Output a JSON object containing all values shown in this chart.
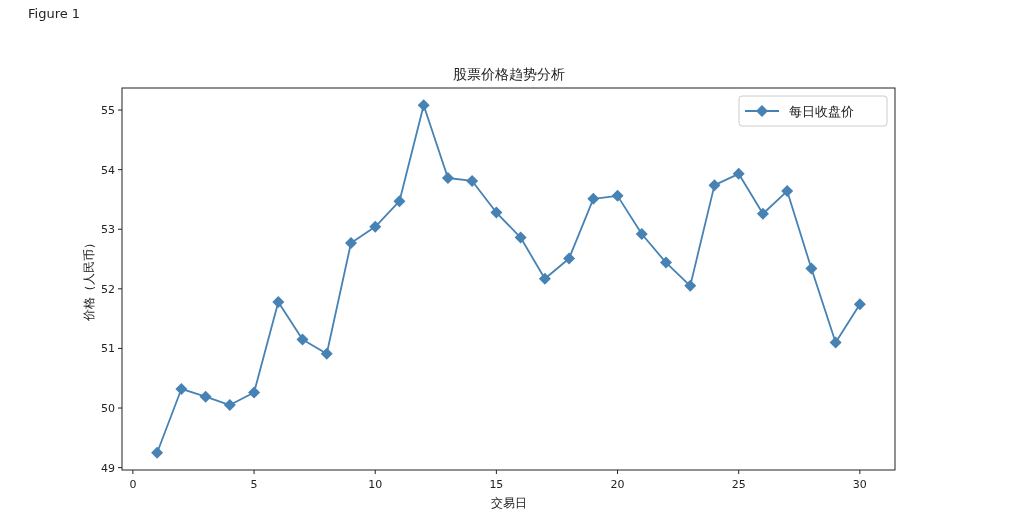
{
  "chart_data": {
    "type": "line",
    "title": "股票价格趋势分析",
    "xlabel": "交易日",
    "ylabel": "价格（人民币）",
    "annotations": [
      "Figure 1"
    ],
    "x": [
      1,
      2,
      3,
      4,
      5,
      6,
      7,
      8,
      9,
      10,
      11,
      12,
      13,
      14,
      15,
      16,
      17,
      18,
      19,
      20,
      21,
      22,
      23,
      24,
      25,
      26,
      27,
      28,
      29,
      30
    ],
    "series": [
      {
        "name": "每日收盘价",
        "color": "#4682b4",
        "values": [
          49.25,
          50.32,
          50.19,
          50.05,
          50.26,
          51.78,
          51.15,
          50.91,
          52.77,
          53.04,
          53.47,
          55.08,
          53.86,
          53.81,
          53.28,
          52.86,
          52.17,
          52.51,
          53.51,
          53.56,
          52.92,
          52.44,
          52.05,
          53.74,
          53.93,
          53.26,
          53.64,
          52.34,
          51.1,
          51.74
        ]
      }
    ],
    "xlim": [
      -0.45,
      31.45
    ],
    "ylim": [
      48.96,
      55.37
    ],
    "xticks": [
      0,
      5,
      10,
      15,
      20,
      25,
      30
    ],
    "yticks": [
      49,
      50,
      51,
      52,
      53,
      54,
      55
    ],
    "marker": "diamond",
    "line_style": "solid",
    "legend": "top right",
    "grid": false
  }
}
